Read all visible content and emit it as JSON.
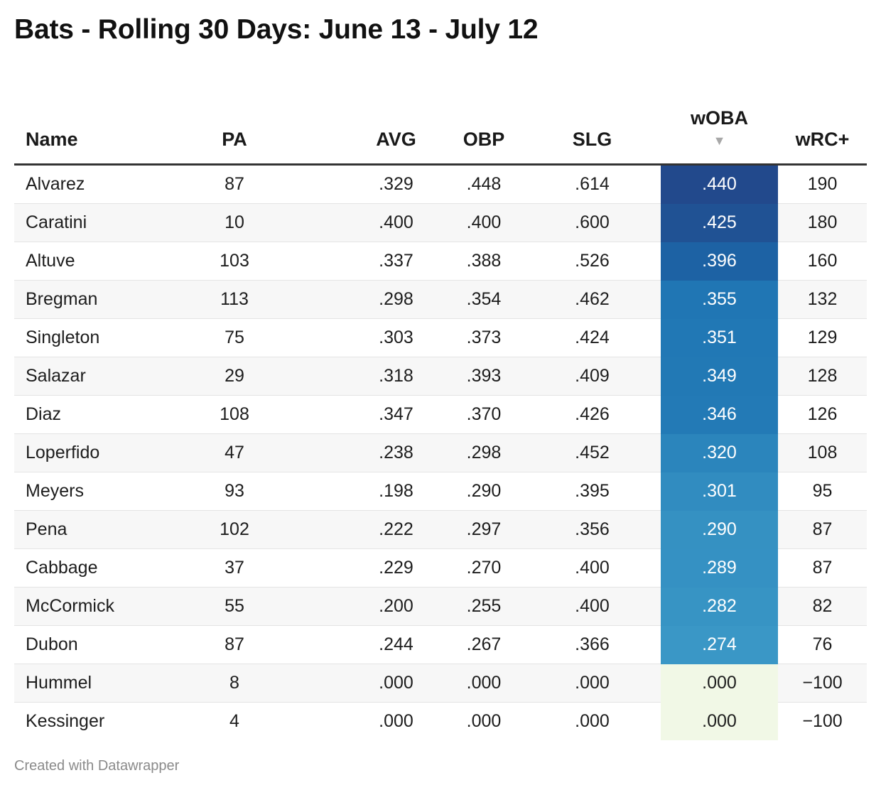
{
  "title": "Bats - Rolling 30 Days: June 13 - July 12",
  "footer": "Created with Datawrapper",
  "sort_icon": "triangle-down-icon",
  "colors": {
    "woba_high": "#22498c",
    "woba_mid": "#1a6fb0",
    "woba_low": "#3a97c6",
    "woba_zero": "#f1f8e6",
    "header_rule": "#333333",
    "row_stripe": "#f7f7f7"
  },
  "chart_data": {
    "type": "table",
    "title": "Bats - Rolling 30 Days: June 13 - July 12",
    "sorted_by": "wOBA",
    "sort_order": "descending",
    "columns": [
      "Name",
      "PA",
      "AVG",
      "OBP",
      "SLG",
      "wOBA",
      "wRC+"
    ],
    "rows": [
      {
        "name": "Alvarez",
        "pa": "87",
        "avg": ".329",
        "obp": ".448",
        "slg": ".614",
        "woba": ".440",
        "wrc": "190"
      },
      {
        "name": "Caratini",
        "pa": "10",
        "avg": ".400",
        "obp": ".400",
        "slg": ".600",
        "woba": ".425",
        "wrc": "180"
      },
      {
        "name": "Altuve",
        "pa": "103",
        "avg": ".337",
        "obp": ".388",
        "slg": ".526",
        "woba": ".396",
        "wrc": "160"
      },
      {
        "name": "Bregman",
        "pa": "113",
        "avg": ".298",
        "obp": ".354",
        "slg": ".462",
        "woba": ".355",
        "wrc": "132"
      },
      {
        "name": "Singleton",
        "pa": "75",
        "avg": ".303",
        "obp": ".373",
        "slg": ".424",
        "woba": ".351",
        "wrc": "129"
      },
      {
        "name": "Salazar",
        "pa": "29",
        "avg": ".318",
        "obp": ".393",
        "slg": ".409",
        "woba": ".349",
        "wrc": "128"
      },
      {
        "name": "Diaz",
        "pa": "108",
        "avg": ".347",
        "obp": ".370",
        "slg": ".426",
        "woba": ".346",
        "wrc": "126"
      },
      {
        "name": "Loperfido",
        "pa": "47",
        "avg": ".238",
        "obp": ".298",
        "slg": ".452",
        "woba": ".320",
        "wrc": "108"
      },
      {
        "name": "Meyers",
        "pa": "93",
        "avg": ".198",
        "obp": ".290",
        "slg": ".395",
        "woba": ".301",
        "wrc": "95"
      },
      {
        "name": "Pena",
        "pa": "102",
        "avg": ".222",
        "obp": ".297",
        "slg": ".356",
        "woba": ".290",
        "wrc": "87"
      },
      {
        "name": "Cabbage",
        "pa": "37",
        "avg": ".229",
        "obp": ".270",
        "slg": ".400",
        "woba": ".289",
        "wrc": "87"
      },
      {
        "name": "McCormick",
        "pa": "55",
        "avg": ".200",
        "obp": ".255",
        "slg": ".400",
        "woba": ".282",
        "wrc": "82"
      },
      {
        "name": "Dubon",
        "pa": "87",
        "avg": ".244",
        "obp": ".267",
        "slg": ".366",
        "woba": ".274",
        "wrc": "76"
      },
      {
        "name": "Hummel",
        "pa": "8",
        "avg": ".000",
        "obp": ".000",
        "slg": ".000",
        "woba": ".000",
        "wrc": "−100"
      },
      {
        "name": "Kessinger",
        "pa": "4",
        "avg": ".000",
        "obp": ".000",
        "slg": ".000",
        "woba": ".000",
        "wrc": "−100"
      }
    ]
  }
}
